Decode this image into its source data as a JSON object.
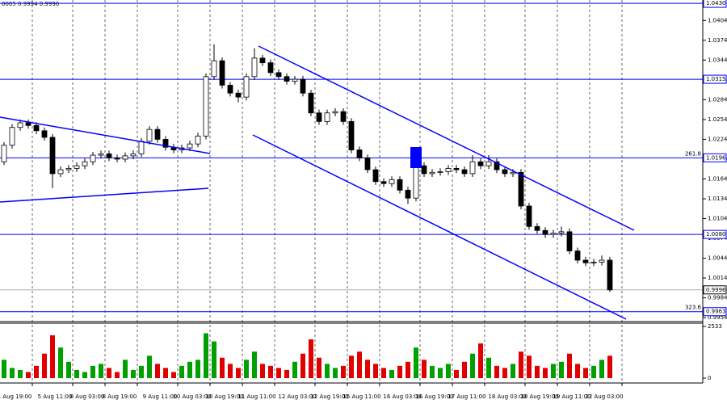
{
  "chart_data": {
    "type": "candlestick",
    "header": "0005 0.9994 0.9996",
    "categories": [
      null,
      "4 Aug 19:00",
      null,
      null,
      null,
      null,
      "5 Aug 11:00",
      null,
      null,
      null,
      "8 Aug 03:00",
      null,
      null,
      null,
      "8 Aug 19:00",
      null,
      null,
      null,
      null,
      "9 Aug 11:00",
      null,
      null,
      null,
      "10 Aug 03:00",
      null,
      null,
      null,
      "10 Aug 19:00",
      null,
      null,
      null,
      "11 Aug 11:00",
      null,
      null,
      null,
      null,
      "12 Aug 03:00",
      null,
      null,
      null,
      "12 Aug 19:00",
      null,
      null,
      null,
      "15 Aug 11:00",
      null,
      null,
      null,
      null,
      "16 Aug 03:00",
      null,
      null,
      null,
      "16 Aug 19:00",
      null,
      null,
      null,
      "17 Aug 11:00",
      null,
      null,
      null,
      null,
      "18 Aug 03:00",
      null,
      null,
      null,
      "18 Aug 19:00",
      null,
      null,
      null,
      "19 Aug 11:00",
      null,
      null,
      null,
      "22 Aug 03:00",
      null
    ],
    "open": [
      1.019,
      1.0215,
      1.0242,
      1.0249,
      1.0245,
      1.0237,
      1.0227,
      1.0172,
      1.0178,
      1.018,
      1.0184,
      1.019,
      1.02,
      1.0202,
      1.0196,
      1.0194,
      1.0199,
      1.0202,
      1.0221,
      1.0239,
      1.0224,
      1.0212,
      1.0208,
      1.0211,
      1.0217,
      1.0229,
      1.0319,
      1.0343,
      1.0306,
      1.0294,
      1.0288,
      1.0319,
      1.0347,
      1.034,
      1.0325,
      1.0319,
      1.0312,
      1.0315,
      1.0294,
      1.0264,
      1.0251,
      1.0264,
      1.0266,
      1.0251,
      1.0208,
      1.0196,
      1.0178,
      1.016,
      1.0157,
      1.0163,
      1.0147,
      1.0135,
      1.0184,
      1.0172,
      1.0174,
      1.0175,
      1.018,
      1.0178,
      1.0172,
      1.019,
      1.0184,
      1.019,
      1.0178,
      1.0172,
      1.0174,
      1.0123,
      1.0092,
      1.0086,
      1.008,
      1.0082,
      1.0084,
      1.0055,
      1.0041,
      1.0037,
      1.0038,
      1.0041
    ],
    "high": [
      1.022,
      1.0247,
      1.0254,
      1.0254,
      1.025,
      1.0242,
      1.0232,
      1.0183,
      1.0185,
      1.0189,
      1.0195,
      1.0205,
      1.0207,
      1.0207,
      1.0201,
      1.0204,
      1.0207,
      1.0226,
      1.0244,
      1.0244,
      1.0229,
      1.0217,
      1.0216,
      1.0222,
      1.0234,
      1.0324,
      1.0368,
      1.0348,
      1.0311,
      1.0299,
      1.0324,
      1.0362,
      1.0352,
      1.0345,
      1.033,
      1.0324,
      1.032,
      1.032,
      1.0299,
      1.0269,
      1.0269,
      1.0271,
      1.0271,
      1.0256,
      1.0213,
      1.0201,
      1.0183,
      1.0165,
      1.0168,
      1.0168,
      1.0152,
      1.0195,
      1.0189,
      1.0179,
      1.018,
      1.0185,
      1.0185,
      1.0183,
      1.02,
      1.0195,
      1.02,
      1.0195,
      1.0183,
      1.0179,
      1.0179,
      1.0128,
      1.0097,
      1.0091,
      1.0087,
      1.0092,
      1.0089,
      1.006,
      1.0046,
      1.0043,
      1.0048,
      1.0046
    ],
    "low": [
      1.0185,
      1.021,
      1.0237,
      1.024,
      1.0232,
      1.0222,
      1.015,
      1.0167,
      1.0173,
      1.0175,
      1.0179,
      1.0185,
      1.0195,
      1.0191,
      1.0189,
      1.0189,
      1.0194,
      1.0197,
      1.0216,
      1.0219,
      1.0207,
      1.0203,
      1.0203,
      1.0206,
      1.0212,
      1.0224,
      1.0314,
      1.0301,
      1.0289,
      1.028,
      1.0283,
      1.0314,
      1.0335,
      1.032,
      1.0314,
      1.0307,
      1.0307,
      1.0289,
      1.0259,
      1.0246,
      1.0246,
      1.0259,
      1.0246,
      1.0203,
      1.0191,
      1.0173,
      1.0155,
      1.0152,
      1.0152,
      1.0142,
      1.0126,
      1.013,
      1.0167,
      1.0167,
      1.0169,
      1.017,
      1.0173,
      1.0167,
      1.0167,
      1.0179,
      1.0179,
      1.0173,
      1.0167,
      1.0167,
      1.0118,
      1.0087,
      1.0081,
      1.0075,
      1.0075,
      1.0077,
      1.005,
      1.0036,
      1.0032,
      1.0032,
      1.0033,
      0.9993
    ],
    "close": [
      1.0215,
      1.0242,
      1.0249,
      1.0245,
      1.0237,
      1.0227,
      1.0172,
      1.0178,
      1.018,
      1.0184,
      1.019,
      1.02,
      1.0202,
      1.0196,
      1.0194,
      1.0199,
      1.0202,
      1.0221,
      1.0239,
      1.0224,
      1.0212,
      1.0208,
      1.0211,
      1.0217,
      1.0229,
      1.0319,
      1.0343,
      1.0306,
      1.0294,
      1.0288,
      1.0319,
      1.0347,
      1.034,
      1.0325,
      1.0319,
      1.0312,
      1.0315,
      1.0294,
      1.0264,
      1.0251,
      1.0264,
      1.0266,
      1.0251,
      1.0208,
      1.0196,
      1.0178,
      1.016,
      1.0157,
      1.0163,
      1.0147,
      1.0135,
      1.0184,
      1.0172,
      1.0174,
      1.0175,
      1.018,
      1.0178,
      1.0172,
      1.019,
      1.0184,
      1.019,
      1.0178,
      1.0172,
      1.0174,
      1.0123,
      1.0092,
      1.0086,
      1.008,
      1.0082,
      1.0084,
      1.0055,
      1.0041,
      1.0037,
      1.0038,
      1.0041,
      0.9996
    ],
    "ylim": [
      0.9948,
      1.0435
    ],
    "yticks": [
      1.0404,
      1.0374,
      1.0344,
      1.0314,
      1.0284,
      1.0254,
      1.0224,
      1.0194,
      1.0164,
      1.0134,
      1.0104,
      1.0074,
      1.0044,
      1.0014,
      0.9984,
      0.9954
    ],
    "grid": true,
    "bull_color": "#ffffff",
    "bear_color": "#000000",
    "level_color": "#0000ff",
    "levels": [
      {
        "value": 1.043,
        "label": "1.0430"
      },
      {
        "value": 1.0315,
        "label": "1.0315"
      },
      {
        "value": 1.0196,
        "label": "1.0196",
        "fib": "261.8"
      },
      {
        "value": 1.008,
        "label": "1.0080"
      },
      {
        "value": 0.9963,
        "label": "0.9963",
        "fib": "323.6"
      }
    ],
    "last": {
      "value": 0.9996,
      "label": "0.9996"
    },
    "volume": {
      "values": [
        900,
        500,
        400,
        300,
        600,
        1200,
        2100,
        1500,
        800,
        400,
        300,
        600,
        700,
        500,
        300,
        900,
        400,
        600,
        1100,
        700,
        500,
        300,
        600,
        800,
        900,
        2200,
        1800,
        1000,
        700,
        500,
        900,
        1300,
        700,
        600,
        500,
        400,
        800,
        1200,
        1900,
        1000,
        700,
        500,
        600,
        1100,
        1300,
        900,
        700,
        500,
        400,
        600,
        800,
        1500,
        900,
        600,
        500,
        700,
        400,
        800,
        1200,
        1700,
        1000,
        600,
        500,
        700,
        1300,
        1100,
        600,
        500,
        700,
        800,
        1200,
        700,
        500,
        600,
        900,
        1100
      ],
      "ylim": [
        0,
        2533
      ],
      "yticks": [
        2533,
        0
      ],
      "up_color": "#00a000",
      "down_color": "#e00000"
    }
  }
}
